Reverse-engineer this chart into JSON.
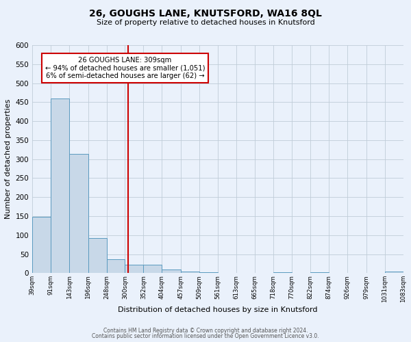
{
  "title": "26, GOUGHS LANE, KNUTSFORD, WA16 8QL",
  "subtitle": "Size of property relative to detached houses in Knutsford",
  "xlabel": "Distribution of detached houses by size in Knutsford",
  "ylabel": "Number of detached properties",
  "bar_edges": [
    39,
    91,
    143,
    196,
    248,
    300,
    352,
    404,
    457,
    509,
    561,
    613,
    665,
    718,
    770,
    822,
    874,
    926,
    979,
    1031,
    1083
  ],
  "bar_heights": [
    148,
    460,
    313,
    93,
    36,
    22,
    22,
    10,
    5,
    2,
    0,
    0,
    0,
    2,
    0,
    2,
    0,
    0,
    0,
    5
  ],
  "bar_color": "#c8d8e8",
  "bar_edge_color": "#5a9abf",
  "vline_x": 309,
  "vline_color": "#cc0000",
  "annotation_line1": "26 GOUGHS LANE: 309sqm",
  "annotation_line2": "← 94% of detached houses are smaller (1,051)",
  "annotation_line3": "6% of semi-detached houses are larger (62) →",
  "annotation_box_color": "#ffffff",
  "annotation_box_edge": "#cc0000",
  "ylim": [
    0,
    600
  ],
  "yticks": [
    0,
    50,
    100,
    150,
    200,
    250,
    300,
    350,
    400,
    450,
    500,
    550,
    600
  ],
  "tick_labels": [
    "39sqm",
    "91sqm",
    "143sqm",
    "196sqm",
    "248sqm",
    "300sqm",
    "352sqm",
    "404sqm",
    "457sqm",
    "509sqm",
    "561sqm",
    "613sqm",
    "665sqm",
    "718sqm",
    "770sqm",
    "822sqm",
    "874sqm",
    "926sqm",
    "979sqm",
    "1031sqm",
    "1083sqm"
  ],
  "footer_line1": "Contains HM Land Registry data © Crown copyright and database right 2024.",
  "footer_line2": "Contains public sector information licensed under the Open Government Licence v3.0.",
  "background_color": "#eaf1fb",
  "plot_bg_color": "#eaf1fb",
  "grid_color": "#c0ccd8"
}
